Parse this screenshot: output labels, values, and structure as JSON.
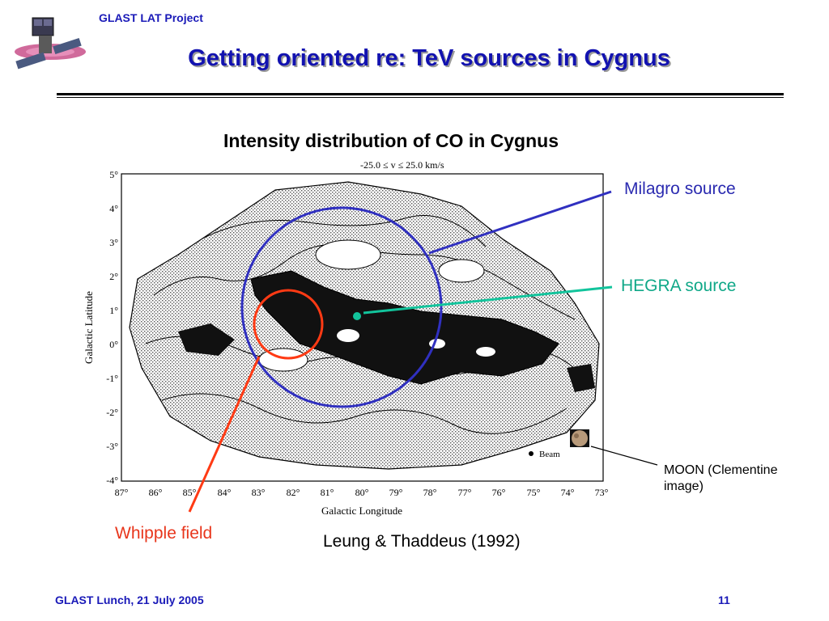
{
  "header": {
    "project": "GLAST LAT Project",
    "title": "Getting oriented re: TeV sources in Cygnus"
  },
  "figure": {
    "subtitle": "Intensity distribution of CO in Cygnus",
    "velocity_range": "-25.0 ≤ v ≤ 25.0 km/s",
    "axis_x_label": "Galactic Longitude",
    "axis_y_label": "Galactic Latitude",
    "x_ticks": [
      "87°",
      "86°",
      "85°",
      "84°",
      "83°",
      "82°",
      "81°",
      "80°",
      "79°",
      "78°",
      "77°",
      "76°",
      "75°",
      "74°",
      "73°"
    ],
    "y_ticks": [
      "5°",
      "4°",
      "3°",
      "2°",
      "1°",
      "0°",
      "-1°",
      "-2°",
      "-3°",
      "-4°"
    ],
    "beam_label": "Beam",
    "credit": "Leung & Thaddeus (1992)"
  },
  "callouts": {
    "milagro": "Milagro source",
    "hegra": "HEGRA source",
    "whipple": "Whipple field",
    "moon_line1": "MOON (Clementine",
    "moon_line2": "image)"
  },
  "colors": {
    "milagro": "#3030c0",
    "hegra": "#12c49c",
    "whipple": "#ff3a14",
    "title": "#1212b0"
  },
  "footer": {
    "left": "GLAST Lunch, 21 July 2005",
    "page": "11"
  }
}
